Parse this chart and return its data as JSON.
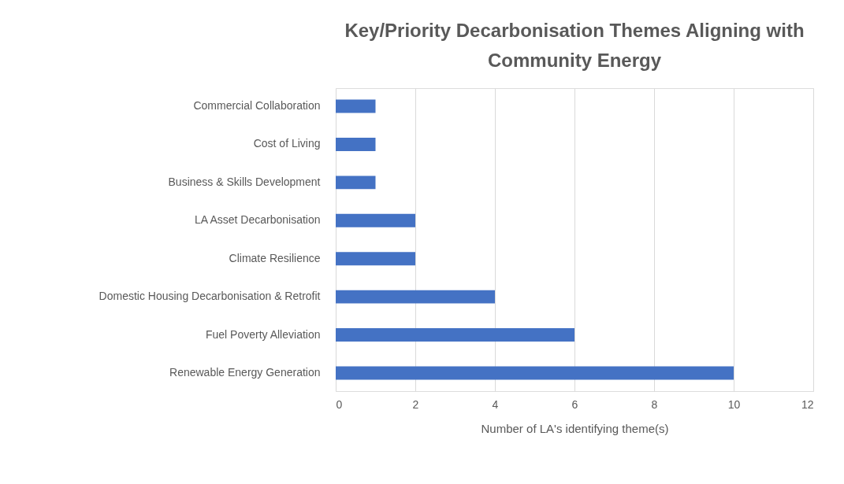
{
  "chart_data": {
    "type": "bar",
    "orientation": "horizontal",
    "title": "Key/Priority Decarbonisation Themes Aligning with Community Energy",
    "xlabel": "Number of LA's identifying theme(s)",
    "categories": [
      "Commercial Collaboration",
      "Cost of Living",
      "Business & Skills Development",
      "LA Asset Decarbonisation",
      "Climate Resilience",
      "Domestic Housing Decarbonisation & Retrofit",
      "Fuel Poverty Alleviation",
      "Renewable Energy Generation"
    ],
    "values": [
      1,
      1,
      1,
      2,
      2,
      4,
      6,
      10
    ],
    "color": "#4472c4",
    "xlim": [
      0,
      12
    ],
    "xticks": [
      0,
      2,
      4,
      6,
      8,
      10,
      12
    ],
    "grid": "x"
  }
}
